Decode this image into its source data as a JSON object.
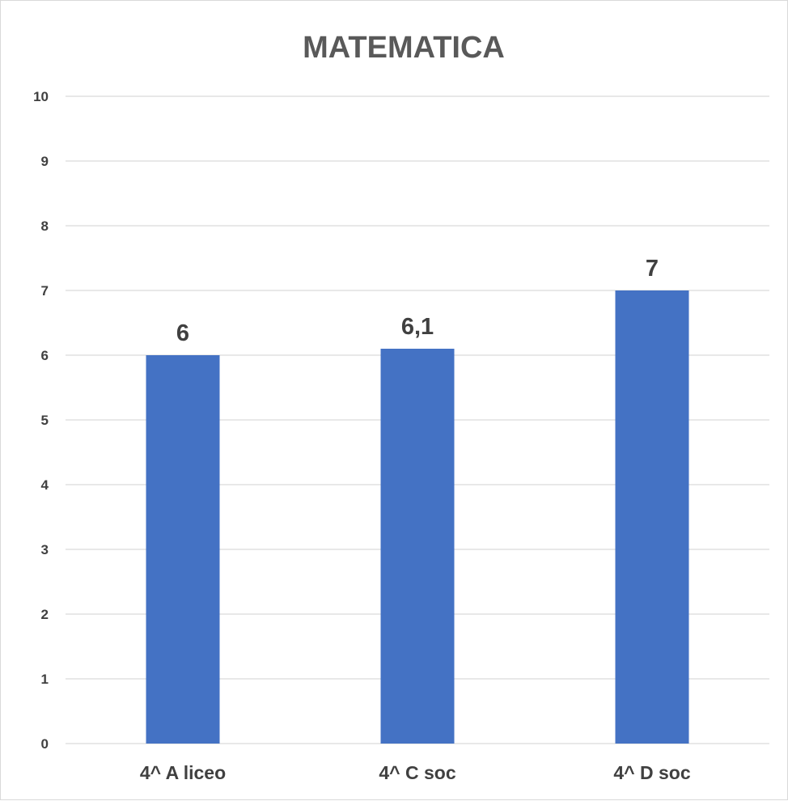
{
  "chart_data": {
    "type": "bar",
    "title": "MATEMATICA",
    "categories": [
      "4^ A liceo",
      "4^ C soc",
      "4^ D soc"
    ],
    "values": [
      6,
      6.1,
      7
    ],
    "data_labels": [
      "6",
      "6,1",
      "7"
    ],
    "ylim": [
      0,
      10
    ],
    "yticks": [
      "0",
      "1",
      "2",
      "3",
      "4",
      "5",
      "6",
      "7",
      "8",
      "9",
      "10"
    ],
    "grid": true,
    "legend": "none",
    "bar_color": "#4472c4"
  }
}
